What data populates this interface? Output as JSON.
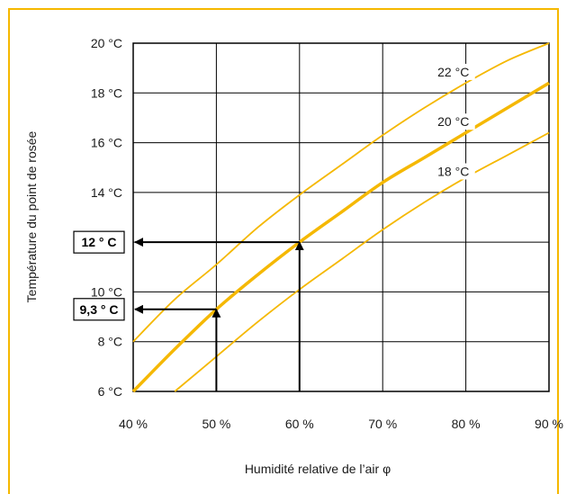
{
  "chart_data": {
    "type": "line",
    "xlabel": "Humidité relative de l’air φ",
    "ylabel": "Température du point de rosée",
    "xlim": [
      40,
      90
    ],
    "ylim": [
      6,
      20
    ],
    "grid": true,
    "x_ticks": [
      40,
      50,
      60,
      70,
      80,
      90
    ],
    "x_tick_labels": [
      "40 %",
      "50 %",
      "60 %",
      "70 %",
      "80 %",
      "90 %"
    ],
    "y_ticks": [
      6,
      8,
      10,
      12,
      14,
      16,
      18,
      20
    ],
    "y_tick_labels": [
      "6 °C",
      "8 °C",
      "10 °C",
      "12 ° C",
      "14 °C",
      "16 °C",
      "18 °C",
      "20 °C"
    ],
    "y_tick_boxed": [
      false,
      false,
      false,
      true,
      false,
      false,
      false,
      false
    ],
    "extra_y_labels": [
      {
        "y": 9.3,
        "label": "9,3 ° C",
        "boxed": true
      }
    ],
    "series": [
      {
        "name": "22 °C",
        "color": "#f5b800",
        "emphasis": false,
        "x": [
          40,
          45,
          50,
          55,
          60,
          65,
          70,
          75,
          80,
          85,
          90
        ],
        "y": [
          8.0,
          9.7,
          11.1,
          12.6,
          13.9,
          15.1,
          16.3,
          17.4,
          18.4,
          19.3,
          20.0
        ]
      },
      {
        "name": "20 °C",
        "color": "#f5b800",
        "emphasis": true,
        "x": [
          40,
          45,
          50,
          55,
          60,
          65,
          70,
          75,
          80,
          85,
          90
        ],
        "y": [
          6.0,
          7.7,
          9.3,
          10.7,
          12.0,
          13.2,
          14.4,
          15.4,
          16.4,
          17.4,
          18.4
        ]
      },
      {
        "name": "18 °C",
        "color": "#f5b800",
        "emphasis": false,
        "x": [
          45,
          50,
          55,
          60,
          65,
          70,
          75,
          80,
          85,
          90
        ],
        "y": [
          6.0,
          7.4,
          8.8,
          10.1,
          11.3,
          12.5,
          13.6,
          14.6,
          15.5,
          16.4
        ]
      }
    ],
    "curve_labels": [
      {
        "text": "22 °C",
        "x": 78.5,
        "y": 18.7
      },
      {
        "text": "20 °C",
        "x": 78.5,
        "y": 16.7
      },
      {
        "text": "18 °C",
        "x": 78.5,
        "y": 14.7
      }
    ],
    "annotations": [
      {
        "type": "arrow",
        "from": [
          60,
          6
        ],
        "to": [
          60,
          12
        ]
      },
      {
        "type": "arrow",
        "from": [
          60,
          12
        ],
        "to": [
          40,
          12
        ]
      },
      {
        "type": "arrow",
        "from": [
          50,
          6
        ],
        "to": [
          50,
          9.3
        ]
      },
      {
        "type": "arrow",
        "from": [
          50,
          9.3
        ],
        "to": [
          40,
          9.3
        ]
      }
    ]
  }
}
